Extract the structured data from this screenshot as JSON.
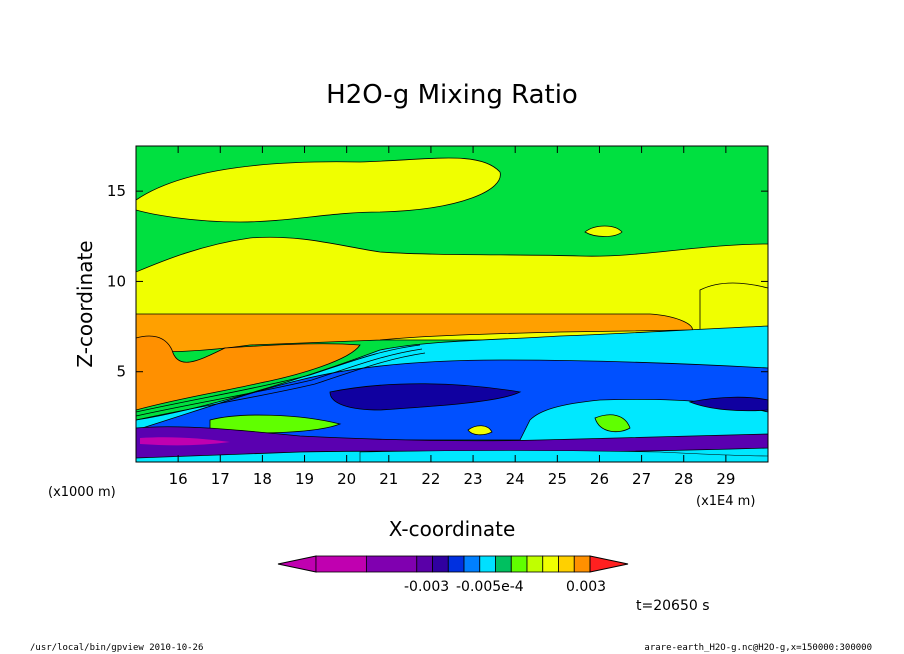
{
  "footer": {
    "left": "/usr/local/bin/gpview  2010-10-26",
    "right": "arare-earth_H2O-g.nc@H2O-g,x=150000:300000"
  },
  "time_label": "t=20650 s",
  "chart_data": {
    "type": "heatmap",
    "title": "H2O-g Mixing Ratio",
    "xlabel": "X-coordinate",
    "ylabel": "Z-coordinate",
    "x_unit": "(x1E4 m)",
    "y_unit": "(x1000 m)",
    "xlim": [
      15.0,
      30.0
    ],
    "ylim": [
      0.0,
      17.5
    ],
    "x_ticks": [
      16,
      17,
      18,
      19,
      20,
      21,
      22,
      23,
      24,
      25,
      26,
      27,
      28,
      29
    ],
    "y_ticks": [
      5,
      10,
      15
    ],
    "x_tick_labels": [
      "16",
      "17",
      "18",
      "19",
      "20",
      "21",
      "22",
      "23",
      "24",
      "25",
      "26",
      "27",
      "28",
      "29"
    ],
    "y_tick_labels": [
      "5",
      "10",
      "15"
    ],
    "colorbar": {
      "colors": [
        "#c000b0",
        "#8000b0",
        "#5a00a8",
        "#3000a0",
        "#0030e0",
        "#0080ff",
        "#00e0ff",
        "#00c060",
        "#60ff00",
        "#c0ff00",
        "#f0ff00",
        "#ffd000",
        "#ff9000",
        "#ff2020"
      ],
      "labels": [
        "-0.003",
        "-0.005e-4",
        "0.003"
      ]
    },
    "regions": [
      {
        "name": "top-green",
        "color": "#00e040"
      },
      {
        "name": "upper-yellow",
        "color": "#f0ff00"
      },
      {
        "name": "orange-layer",
        "color": "#ffa000"
      },
      {
        "name": "cyan-band",
        "color": "#00e8ff"
      },
      {
        "name": "blue-band",
        "color": "#0050ff"
      },
      {
        "name": "navy-band",
        "color": "#1000a0"
      },
      {
        "name": "purple-base",
        "color": "#6000b0"
      }
    ]
  }
}
